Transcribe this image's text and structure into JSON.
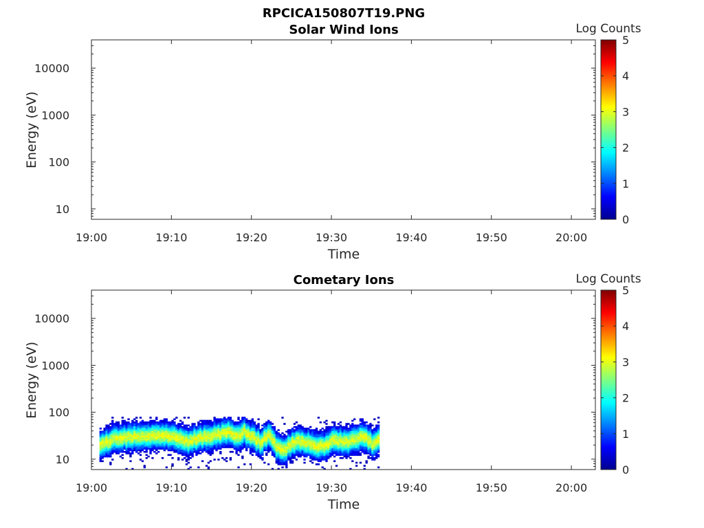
{
  "figure_title": "RPCICA150807T19.PNG",
  "chart_data": [
    {
      "type": "heatmap",
      "title": "Solar Wind Ions",
      "xlabel": "Time",
      "ylabel": "Energy (eV)",
      "x_ticks": [
        "19:00",
        "19:10",
        "19:20",
        "19:30",
        "19:40",
        "19:50",
        "20:00"
      ],
      "x_range": [
        "19:00",
        "20:03"
      ],
      "y_scale": "log",
      "y_range": [
        6,
        40000
      ],
      "y_ticks": [
        "10",
        "100",
        "1000",
        "10000"
      ],
      "colorbar": {
        "label": "Log Counts",
        "ticks": [
          "0",
          "1",
          "2",
          "3",
          "4",
          "5"
        ],
        "range": [
          0,
          5
        ],
        "colormap": "jet"
      },
      "data": []
    },
    {
      "type": "heatmap",
      "title": "Cometary Ions",
      "xlabel": "Time",
      "ylabel": "Energy (eV)",
      "x_ticks": [
        "19:00",
        "19:10",
        "19:20",
        "19:30",
        "19:40",
        "19:50",
        "20:00"
      ],
      "x_range": [
        "19:00",
        "20:03"
      ],
      "y_scale": "log",
      "y_range": [
        6,
        40000
      ],
      "y_ticks": [
        "10",
        "100",
        "1000",
        "10000"
      ],
      "colorbar": {
        "label": "Log Counts",
        "ticks": [
          "0",
          "1",
          "2",
          "3",
          "4",
          "5"
        ],
        "range": [
          0,
          5
        ],
        "colormap": "jet"
      },
      "data_time_range": [
        "19:01",
        "19:36"
      ],
      "data_energy_range_eV": [
        6,
        80
      ],
      "peak_energy_eV": [
        [
          "19:01",
          20
        ],
        [
          "19:03",
          28
        ],
        [
          "19:05",
          30
        ],
        [
          "19:08",
          32
        ],
        [
          "19:10",
          30
        ],
        [
          "19:12",
          24
        ],
        [
          "19:14",
          30
        ],
        [
          "19:16",
          34
        ],
        [
          "19:17",
          40
        ],
        [
          "19:18",
          30
        ],
        [
          "19:19",
          38
        ],
        [
          "19:20",
          30
        ],
        [
          "19:21",
          22
        ],
        [
          "19:22",
          34
        ],
        [
          "19:23",
          18
        ],
        [
          "19:24",
          15
        ],
        [
          "19:25",
          22
        ],
        [
          "19:26",
          24
        ],
        [
          "19:28",
          20
        ],
        [
          "19:29",
          18
        ],
        [
          "19:30",
          25
        ],
        [
          "19:32",
          24
        ],
        [
          "19:34",
          30
        ],
        [
          "19:35",
          22
        ],
        [
          "19:36",
          28
        ]
      ],
      "peak_log_counts": 3
    }
  ]
}
